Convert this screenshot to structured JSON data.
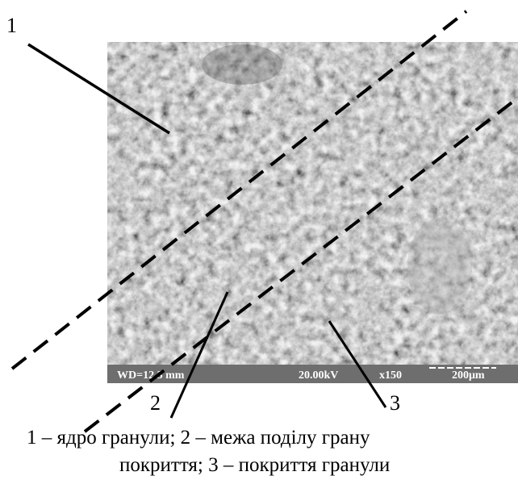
{
  "figure": {
    "callouts": [
      "1",
      "2",
      "3"
    ],
    "info_bar": {
      "working_distance": "WD=12.3 mm",
      "voltage": "20.00kV",
      "magnification": "x150",
      "scale": "200μm"
    },
    "caption": [
      "1 – ядро гранули; 2 – межа поділу грану",
      "покриття; 3 – покриття гранули"
    ]
  }
}
